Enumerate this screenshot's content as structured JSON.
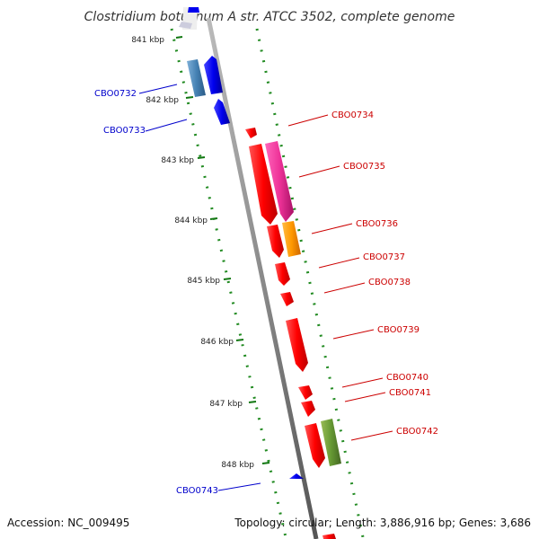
{
  "title": "Clostridium botulinum A str. ATCC 3502, complete genome",
  "footer": {
    "accession": "Accession: NC_009495",
    "summary": "Topology: circular; Length: 3,886,916 bp; Genes: 3,686"
  },
  "ticks": [
    "841 kbp",
    "842 kbp",
    "843 kbp",
    "844 kbp",
    "845 kbp",
    "846 kbp",
    "847 kbp",
    "848 kbp"
  ],
  "genes": [
    {
      "id": "CBO0732",
      "strand": "reverse",
      "color": "#0000cc"
    },
    {
      "id": "CBO0733",
      "strand": "reverse",
      "color": "#0000cc"
    },
    {
      "id": "CBO0734",
      "strand": "forward",
      "color": "#cc0000"
    },
    {
      "id": "CBO0735",
      "strand": "forward",
      "color": "#cc0000"
    },
    {
      "id": "CBO0736",
      "strand": "forward",
      "color": "#cc0000"
    },
    {
      "id": "CBO0737",
      "strand": "forward",
      "color": "#cc0000"
    },
    {
      "id": "CBO0738",
      "strand": "forward",
      "color": "#cc0000"
    },
    {
      "id": "CBO0739",
      "strand": "forward",
      "color": "#cc0000"
    },
    {
      "id": "CBO0740",
      "strand": "forward",
      "color": "#cc0000"
    },
    {
      "id": "CBO0741",
      "strand": "forward",
      "color": "#cc0000"
    },
    {
      "id": "CBO0742",
      "strand": "forward",
      "color": "#cc0000"
    },
    {
      "id": "CBO0743",
      "strand": "reverse",
      "color": "#0000cc"
    }
  ],
  "colors": {
    "backbone": "#8a8a8a",
    "forward_cds": "#ff0000",
    "reverse_cds": "#0000ee",
    "forward_feature_pink": "#ee3399",
    "forward_feature_orange": "#ff9900",
    "forward_feature_olive": "#669933",
    "reverse_feature_steel": "#4682b4",
    "gc_dots": "#228b22"
  }
}
